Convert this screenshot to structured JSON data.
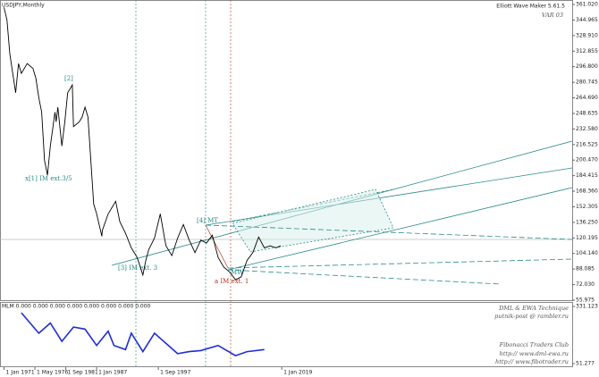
{
  "chart_data": [
    {
      "type": "line",
      "title": "USDJPY,Monthly",
      "x": [
        1971,
        1971.5,
        1972,
        1973,
        1973.5,
        1974,
        1975,
        1976,
        1976.5,
        1977,
        1977.5,
        1978,
        1978.5,
        1979,
        1979.8,
        1980,
        1980.3,
        1981,
        1981.5,
        1982,
        1982.8,
        1983,
        1984,
        1984.5,
        1985,
        1985.5,
        1986,
        1986.5,
        1987,
        1987.9,
        1988,
        1989,
        1990,
        1990.3,
        1991,
        1992,
        1993,
        1994,
        1995,
        1995.5,
        1996,
        1997,
        1998,
        1998.8,
        1999,
        2000,
        2001,
        2002,
        2003,
        2004,
        2005,
        2006,
        2007,
        2008,
        2009,
        2010,
        2011,
        2012,
        2013,
        2014,
        2015,
        2016,
        2017,
        2018,
        2018.8
      ],
      "series": [
        {
          "name": "USDJPY",
          "color": "#000000",
          "values": [
            358,
            345,
            310,
            270,
            300,
            290,
            300,
            295,
            285,
            265,
            250,
            200,
            185,
            215,
            250,
            240,
            255,
            215,
            240,
            270,
            278,
            235,
            240,
            245,
            255,
            245,
            200,
            155,
            145,
            122,
            128,
            145,
            155,
            158,
            137,
            125,
            110,
            100,
            82,
            97,
            108,
            120,
            145,
            118,
            112,
            102,
            120,
            134,
            118,
            105,
            118,
            115,
            123,
            100,
            90,
            85,
            77,
            80,
            97,
            105,
            121,
            110,
            112,
            110,
            112
          ]
        }
      ],
      "xlim": [
        1970.3,
        2069.2
      ],
      "ylim": [
        55.975,
        361.02
      ],
      "yticks": [
        {
          "value": 361.02,
          "label": "361.020"
        },
        {
          "value": 344.965,
          "label": "344.965"
        },
        {
          "value": 328.91,
          "label": "328.910"
        },
        {
          "value": 312.855,
          "label": "312.855"
        },
        {
          "value": 296.8,
          "label": "296.800"
        },
        {
          "value": 280.745,
          "label": "280.745"
        },
        {
          "value": 264.69,
          "label": "264.690"
        },
        {
          "value": 248.635,
          "label": "248.635"
        },
        {
          "value": 232.58,
          "label": "232.580"
        },
        {
          "value": 216.525,
          "label": "216.525"
        },
        {
          "value": 200.47,
          "label": "200.470"
        },
        {
          "value": 184.415,
          "label": "184.415"
        },
        {
          "value": 168.36,
          "label": "168.360"
        },
        {
          "value": 152.305,
          "label": "152.305"
        },
        {
          "value": 136.25,
          "label": "136.250"
        },
        {
          "value": 120.195,
          "label": "120.195"
        },
        {
          "value": 104.14,
          "label": "104.140"
        },
        {
          "value": 88.085,
          "label": "88.085"
        },
        {
          "value": 72.03,
          "label": "72.030"
        },
        {
          "value": 55.975,
          "label": "55.975"
        }
      ],
      "annotations": [
        "[2]",
        "x[1] IM ext.3/5",
        "[3] IM ext. 3",
        "[4] MT",
        "a IM ext. 1",
        "MW",
        "Elliott Wave Maker 5.61.5",
        "VAR 03"
      ]
    },
    {
      "type": "line",
      "title": "MLM 0.000 0.000 0.000 0.000 0.000 0.000 0.000 0.000",
      "x": [
        1974,
        1977,
        1979,
        1981,
        1983,
        1985,
        1987,
        1989,
        1990,
        1992,
        1993,
        1995,
        1997,
        1999,
        2001,
        2003,
        2005,
        2008,
        2011,
        2013,
        2016
      ],
      "series": [
        {
          "name": "MLM",
          "color": "#1f2fd0",
          "values": [
            300,
            200,
            250,
            160,
            230,
            220,
            140,
            210,
            140,
            120,
            200,
            110,
            200,
            150,
            100,
            110,
            115,
            140,
            90,
            110,
            120
          ]
        }
      ],
      "xlim": [
        1970.3,
        2069.2
      ],
      "ylim": [
        51.277,
        331.123
      ],
      "yticks": [
        {
          "value": 331.123,
          "label": "331.123"
        },
        {
          "value": 51.277,
          "label": "51.277"
        }
      ],
      "xticks": [
        {
          "value": 1971,
          "label": "1 Jan 1971"
        },
        {
          "value": 1976.33,
          "label": "1 May 1976"
        },
        {
          "value": 1981.67,
          "label": "1 Sep 1981"
        },
        {
          "value": 1987,
          "label": "1 Jan 1987"
        },
        {
          "value": 1997.67,
          "label": "1 Sep 1997"
        },
        {
          "value": 2019,
          "label": "1 Jan 2019"
        }
      ],
      "annotations": [
        "DML & EWA Technique",
        "putnik-post @ rambler.ru",
        "Fibonacci Traders Club",
        "http:// www.dml-ewa.ru",
        "http:// www.fibotrader.ru"
      ]
    }
  ]
}
